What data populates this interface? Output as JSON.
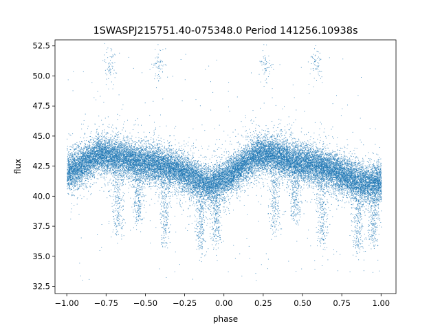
{
  "chart_data": {
    "type": "scatter",
    "title": "1SWASPJ215751.40-075348.0 Period 141256.10938s",
    "xlabel": "phase",
    "ylabel": "flux",
    "xlim": [
      -1.075,
      1.095
    ],
    "ylim": [
      31.9,
      53.0
    ],
    "x_ticks": [
      -1.0,
      -0.75,
      -0.5,
      -0.25,
      0.0,
      0.25,
      0.5,
      0.75,
      1.0
    ],
    "x_tick_labels": [
      "−1.00",
      "−0.75",
      "−0.50",
      "−0.25",
      "0.00",
      "0.25",
      "0.50",
      "0.75",
      "1.00"
    ],
    "y_ticks": [
      32.5,
      35.0,
      37.5,
      40.0,
      42.5,
      45.0,
      47.5,
      50.0,
      52.5
    ],
    "y_tick_labels": [
      "32.5",
      "35.0",
      "37.5",
      "40.0",
      "42.5",
      "45.0",
      "47.5",
      "50.0",
      "52.5"
    ],
    "grid": false,
    "legend": "none",
    "marker_color": "#1f77b4",
    "x_range": [
      -1.0,
      1.0
    ],
    "mean_curve": {
      "x": [
        -1.0,
        -0.9,
        -0.8,
        -0.7,
        -0.6,
        -0.5,
        -0.4,
        -0.3,
        -0.2,
        -0.1,
        0.0,
        0.1,
        0.2,
        0.3,
        0.4,
        0.5,
        0.6,
        0.7,
        0.8,
        0.9,
        1.0
      ],
      "y": [
        41.9,
        42.7,
        43.5,
        43.3,
        43.0,
        42.8,
        42.6,
        42.2,
        41.6,
        40.9,
        41.4,
        42.4,
        43.4,
        43.5,
        43.0,
        42.8,
        42.5,
        42.1,
        41.5,
        41.0,
        41.2
      ]
    },
    "dips": [
      {
        "phase": -0.68,
        "min_flux": 37.0
      },
      {
        "phase": -0.55,
        "min_flux": 38.0
      },
      {
        "phase": -0.38,
        "min_flux": 36.0
      },
      {
        "phase": -0.15,
        "min_flux": 35.5
      },
      {
        "phase": -0.05,
        "min_flux": 36.0
      },
      {
        "phase": 0.32,
        "min_flux": 37.0
      },
      {
        "phase": 0.45,
        "min_flux": 38.0
      },
      {
        "phase": 0.62,
        "min_flux": 36.0
      },
      {
        "phase": 0.85,
        "min_flux": 35.5
      },
      {
        "phase": 0.95,
        "min_flux": 36.0
      }
    ],
    "high_clusters": [
      {
        "phase": -0.73,
        "flux": 51.0
      },
      {
        "phase": -0.42,
        "flux": 51.0
      },
      {
        "phase": 0.27,
        "flux": 51.0
      },
      {
        "phase": 0.58,
        "flux": 51.0
      }
    ],
    "point_count": 26000
  }
}
